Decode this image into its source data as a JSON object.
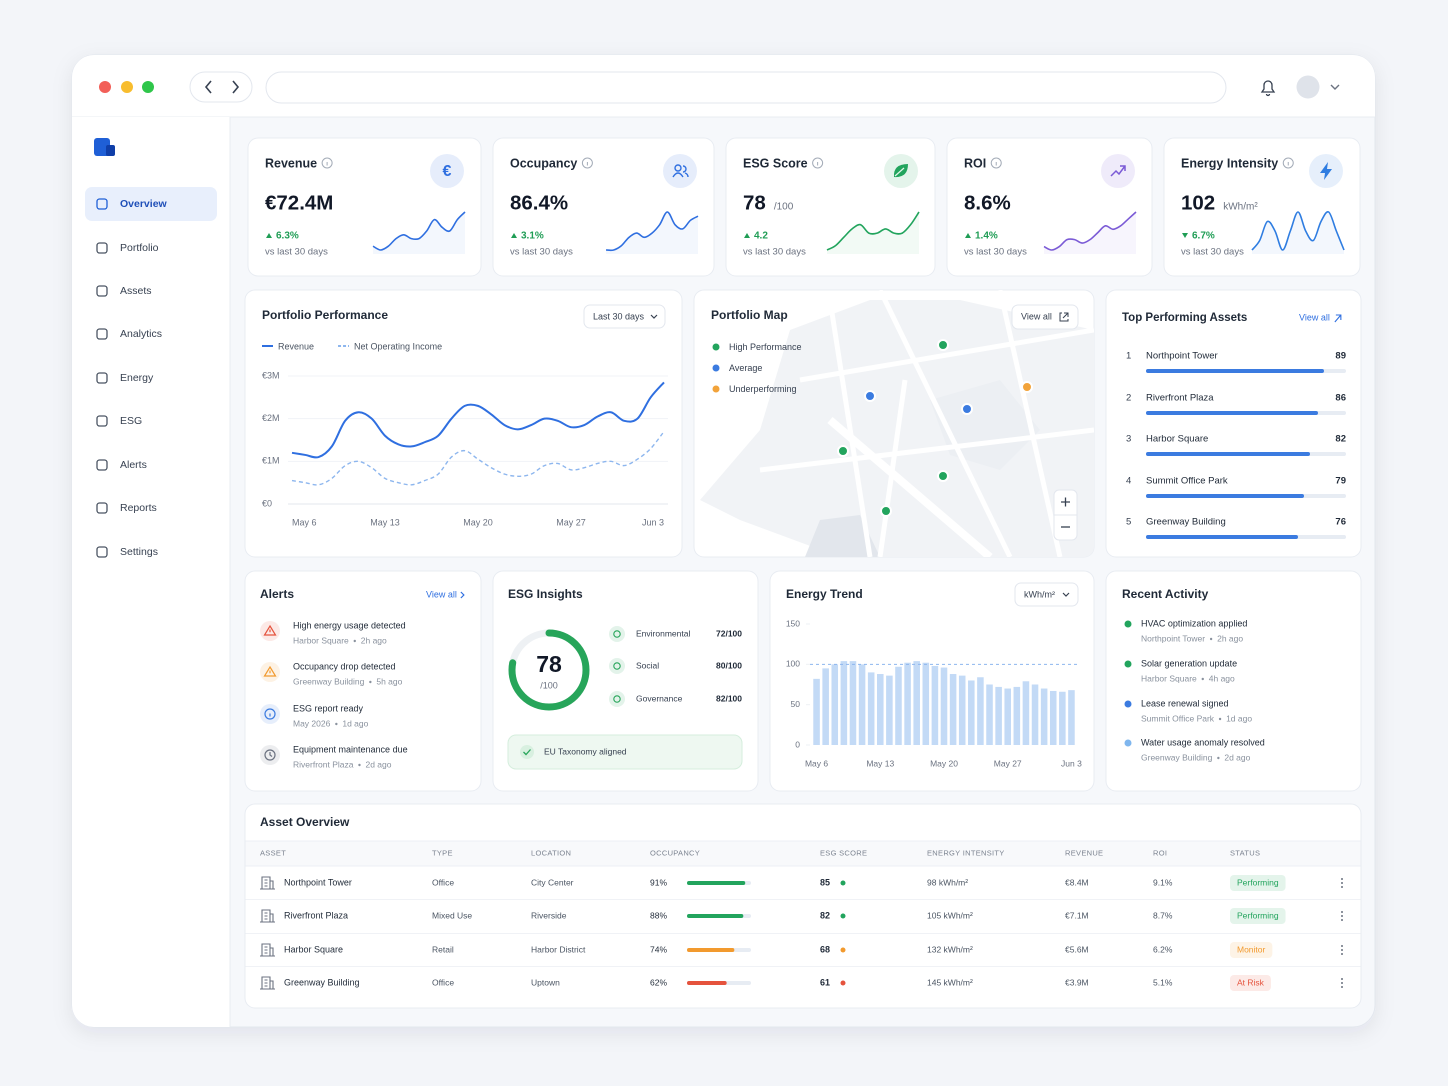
{
  "app": {
    "nav": [
      "Overview",
      "Portfolio",
      "Assets",
      "Analytics",
      "Energy",
      "ESG",
      "Alerts",
      "Reports",
      "Settings"
    ]
  },
  "kpis": [
    {
      "label": "Revenue",
      "icon": "€",
      "value": "€72.4M",
      "change": "6.3%",
      "trend": "up",
      "note": "vs last 30 days",
      "color": "#2f6fe0",
      "spark": [
        3,
        2,
        3,
        5,
        6,
        5,
        5,
        7,
        10,
        8,
        7,
        10,
        12
      ]
    },
    {
      "label": "Occupancy",
      "value": "86.4%",
      "change": "3.1%",
      "trend": "up",
      "note": "vs last 30 days",
      "color": "#2f6fe0",
      "spark": [
        3,
        3,
        4,
        6,
        7,
        6,
        7,
        9,
        12,
        9,
        8,
        10,
        11
      ]
    },
    {
      "label": "ESG Score",
      "value": "78",
      "unit": "/100",
      "change": "4.2",
      "trend": "up",
      "note": "vs last 30 days",
      "color": "#22a45d",
      "spark": [
        4,
        5,
        7,
        9,
        10,
        8,
        8,
        9,
        8,
        8,
        10,
        13
      ]
    },
    {
      "label": "ROI",
      "value": "8.6%",
      "change": "1.4%",
      "trend": "up",
      "note": "vs last 30 days",
      "color": "#7b5bd6",
      "spark": [
        4,
        3,
        4,
        6,
        6,
        5,
        6,
        8,
        10,
        9,
        10,
        12,
        14
      ]
    },
    {
      "label": "Energy Intensity",
      "value": "102",
      "unit": "kWh/m²",
      "change": "6.7%",
      "trend": "down",
      "note": "vs last 30 days",
      "color": "#2f7de1",
      "spark": [
        6,
        7,
        9,
        8,
        6,
        8,
        10,
        8,
        7,
        9,
        10,
        8,
        6
      ]
    }
  ],
  "chart_data": [
    {
      "type": "line",
      "title": "Portfolio Performance",
      "range": "Last 30 days",
      "categories": [
        "May 6",
        null,
        null,
        null,
        null,
        null,
        null,
        "May 13",
        null,
        null,
        null,
        null,
        null,
        null,
        "May 20",
        null,
        null,
        null,
        null,
        null,
        null,
        "May 27",
        null,
        null,
        null,
        null,
        null,
        null,
        "Jun 3"
      ],
      "series": [
        {
          "name": "Revenue",
          "color": "#2f6fe0",
          "dashed": false,
          "values": [
            1.2,
            1.15,
            1.1,
            1.35,
            1.95,
            2.15,
            2.0,
            1.6,
            1.4,
            1.35,
            1.45,
            1.6,
            2.0,
            2.3,
            2.3,
            2.1,
            1.85,
            1.75,
            1.85,
            2.0,
            1.95,
            1.8,
            1.85,
            2.05,
            2.15,
            1.95,
            2.0,
            2.5,
            2.85
          ]
        },
        {
          "name": "Net Operating Income",
          "color": "#8db6ee",
          "dashed": true,
          "values": [
            0.55,
            0.5,
            0.45,
            0.6,
            0.9,
            1.0,
            0.85,
            0.6,
            0.5,
            0.45,
            0.55,
            0.7,
            1.1,
            1.25,
            1.05,
            0.85,
            0.7,
            0.65,
            0.7,
            0.9,
            0.95,
            0.8,
            0.85,
            0.95,
            1.0,
            0.9,
            1.05,
            1.3,
            1.7
          ]
        }
      ],
      "ylim": [
        0,
        3
      ],
      "yticks": [
        {
          "value": 0,
          "label": "€0"
        },
        {
          "value": 1,
          "label": "€1M"
        },
        {
          "value": 2,
          "label": "€2M"
        },
        {
          "value": 3,
          "label": "€3M"
        }
      ],
      "grid": true
    },
    {
      "type": "bar",
      "title": "Energy Trend",
      "unit": "kWh/m²",
      "categories": [
        "May 6",
        null,
        null,
        null,
        null,
        null,
        null,
        "May 13",
        null,
        null,
        null,
        null,
        null,
        null,
        "May 20",
        null,
        null,
        null,
        null,
        null,
        null,
        "May 27",
        null,
        null,
        null,
        null,
        null,
        null,
        "Jun 3"
      ],
      "values": [
        82,
        95,
        100,
        104,
        104,
        100,
        90,
        88,
        86,
        97,
        102,
        104,
        102,
        98,
        96,
        88,
        86,
        80,
        84,
        75,
        72,
        70,
        72,
        79,
        75,
        70,
        67,
        66,
        68
      ],
      "color": "#c3daf6",
      "reference": 100,
      "ylim": [
        0,
        150
      ],
      "yticks": [
        0,
        50,
        100,
        150
      ]
    }
  ],
  "map": {
    "title": "Portfolio Map",
    "action": "View all",
    "legend": [
      {
        "name": "High Performance",
        "color": "#22a45d"
      },
      {
        "name": "Average",
        "color": "#3b7be0"
      },
      {
        "name": "Underperforming",
        "color": "#f2a33a"
      }
    ]
  },
  "top_assets": {
    "title": "Top Performing Assets",
    "action": "View all",
    "color": "#3b7be0",
    "items": [
      {
        "rank": 1,
        "name": "Northpoint Tower",
        "score": 89
      },
      {
        "rank": 2,
        "name": "Riverfront Plaza",
        "score": 86
      },
      {
        "rank": 3,
        "name": "Harbor Square",
        "score": 82
      },
      {
        "rank": 4,
        "name": "Summit Office Park",
        "score": 79
      },
      {
        "rank": 5,
        "name": "Greenway Building",
        "score": 76
      }
    ]
  },
  "alerts": {
    "title": "Alerts",
    "action": "View all",
    "items": [
      {
        "title": "High energy usage detected",
        "location": "Harbor Square",
        "time": "2h ago",
        "color": "#e5533d"
      },
      {
        "title": "Occupancy drop detected",
        "location": "Greenway Building",
        "time": "5h ago",
        "color": "#f29a2e"
      },
      {
        "title": "ESG report ready",
        "location": "May 2026",
        "time": "1d ago",
        "color": "#3b7be0"
      },
      {
        "title": "Equipment maintenance due",
        "location": "Riverfront Plaza",
        "time": "2d ago",
        "color": "#6b7280"
      }
    ]
  },
  "esg": {
    "title": "ESG Insights",
    "score": 78,
    "max": {
      "value": 100,
      "label": "/100"
    },
    "color": "#27a55a",
    "rows": [
      {
        "name": "Environmental",
        "value": "72/100"
      },
      {
        "name": "Social",
        "value": "80/100"
      },
      {
        "name": "Governance",
        "value": "82/100"
      }
    ],
    "badge": "EU Taxonomy aligned"
  },
  "activity": {
    "title": "Recent Activity",
    "items": [
      {
        "title": "HVAC optimization applied",
        "location": "Northpoint Tower",
        "time": "2h ago",
        "color": "#22a45d"
      },
      {
        "title": "Solar generation update",
        "location": "Harbor Square",
        "time": "4h ago",
        "color": "#22a45d"
      },
      {
        "title": "Lease renewal signed",
        "location": "Summit Office Park",
        "time": "1d ago",
        "color": "#3b7be0"
      },
      {
        "title": "Water usage anomaly resolved",
        "location": "Greenway Building",
        "time": "2d ago",
        "color": "#7fb6ee"
      }
    ]
  },
  "table": {
    "title": "Asset Overview",
    "columns": [
      "ASSET",
      "TYPE",
      "LOCATION",
      "OCCUPANCY",
      "ESG SCORE",
      "ENERGY INTENSITY",
      "REVENUE",
      "ROI",
      "STATUS"
    ],
    "rows": [
      {
        "asset": "Northpoint Tower",
        "type": "Office",
        "location": "City Center",
        "occupancy": {
          "value": 91,
          "label": "91%"
        },
        "esg": 85,
        "energy": "98 kWh/m²",
        "revenue": "€8.4M",
        "roi": "9.1%",
        "status": "Performing",
        "color": "#22a45d"
      },
      {
        "asset": "Riverfront Plaza",
        "type": "Mixed Use",
        "location": "Riverside",
        "occupancy": {
          "value": 88,
          "label": "88%"
        },
        "esg": 82,
        "energy": "105 kWh/m²",
        "revenue": "€7.1M",
        "roi": "8.7%",
        "status": "Performing",
        "color": "#22a45d"
      },
      {
        "asset": "Harbor Square",
        "type": "Retail",
        "location": "Harbor District",
        "occupancy": {
          "value": 74,
          "label": "74%"
        },
        "esg": 68,
        "energy": "132 kWh/m²",
        "revenue": "€5.6M",
        "roi": "6.2%",
        "status": "Monitor",
        "color": "#f29a2e"
      },
      {
        "asset": "Greenway Building",
        "type": "Office",
        "location": "Uptown",
        "occupancy": {
          "value": 62,
          "label": "62%"
        },
        "esg": 61,
        "energy": "145 kWh/m²",
        "revenue": "€3.9M",
        "roi": "5.1%",
        "status": "At Risk",
        "color": "#e5533d"
      }
    ]
  }
}
